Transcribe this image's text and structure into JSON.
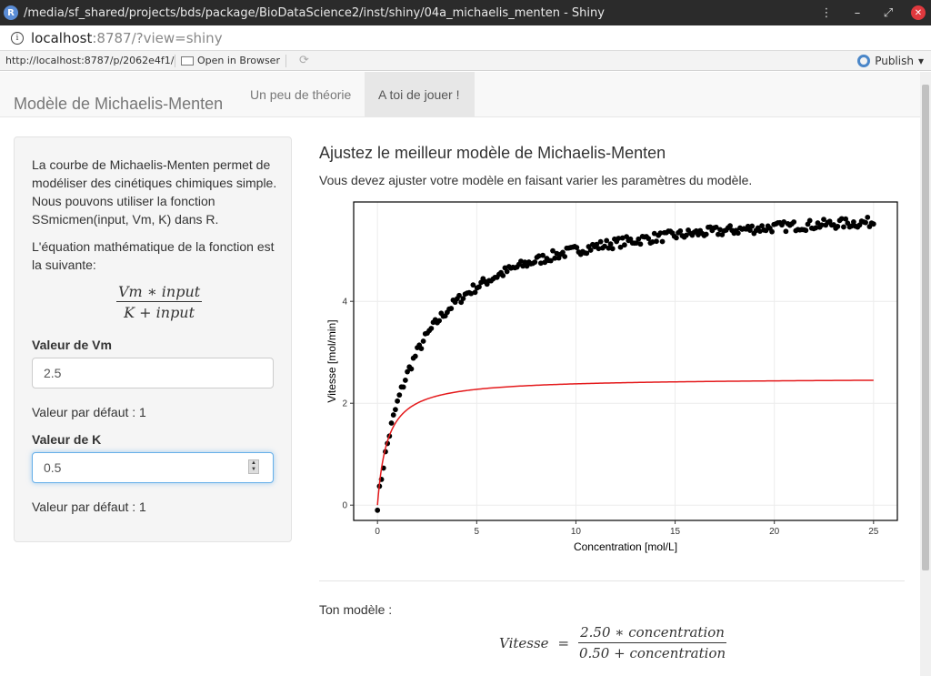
{
  "window": {
    "title": "/media/sf_shared/projects/bds/package/BioDataScience2/inst/shiny/04a_michaelis_menten - Shiny",
    "menu_icon": "kebab-icon",
    "minimize": "—",
    "restore": "⌄",
    "maximize": "⌃",
    "close": "✕"
  },
  "address": {
    "host": "localhost",
    "path": ":8787/?view=shiny"
  },
  "toolbar": {
    "url": "http://localhost:8787/p/2062e4f1/",
    "open_in_browser": "Open in Browser",
    "publish": "Publish"
  },
  "nav": {
    "brand": "Modèle de Michaelis-Menten",
    "tabs": [
      {
        "label": "Un peu de théorie"
      },
      {
        "label": "A toi de jouer !"
      }
    ],
    "active_tab": 1
  },
  "sidebar": {
    "intro": "La courbe de Michaelis-Menten permet de modéliser des cinétiques chimiques simple. Nous pouvons utiliser la fonction SSmicmen(input, Vm, K) dans R.",
    "equation_intro": "L'équation mathématique de la fonction est la suivante:",
    "formula_num": "Vm ∗ input",
    "formula_den": "K + input",
    "vm_label": "Valeur de Vm",
    "vm_value": "2.5",
    "vm_default": "Valeur par défaut : 1",
    "k_label": "Valeur de K",
    "k_value": "0.5",
    "k_default": "Valeur par défaut : 1"
  },
  "main": {
    "heading": "Ajustez le meilleur modèle de Michaelis-Menten",
    "lead": "Vous devez ajuster votre modèle en faisant varier les paramètres du modèle.",
    "model_label": "Ton modèle :",
    "model_lhs": "Vitesse",
    "model_eq": "=",
    "model_num": "2.50 ∗ concentration",
    "model_den": "0.50 + concentration"
  },
  "chart_data": {
    "type": "scatter",
    "xlabel": "Concentration [mol/L]",
    "ylabel": "Vitesse [mol/min]",
    "xlim": [
      -1.2,
      26.2
    ],
    "ylim": [
      -0.3,
      5.95
    ],
    "xticks": [
      0,
      5,
      10,
      15,
      20,
      25
    ],
    "yticks": [
      0,
      2,
      4
    ],
    "grid": true,
    "series": [
      {
        "type": "points",
        "color": "#000000",
        "observed_model": {
          "Vm": 6.0,
          "K": 2.0,
          "x_from": 0,
          "x_to": 25,
          "n": 250
        }
      },
      {
        "type": "line",
        "color": "#e41a1c",
        "model": {
          "Vm": 2.5,
          "K": 0.5,
          "x_from": 0,
          "x_to": 25
        }
      }
    ]
  }
}
